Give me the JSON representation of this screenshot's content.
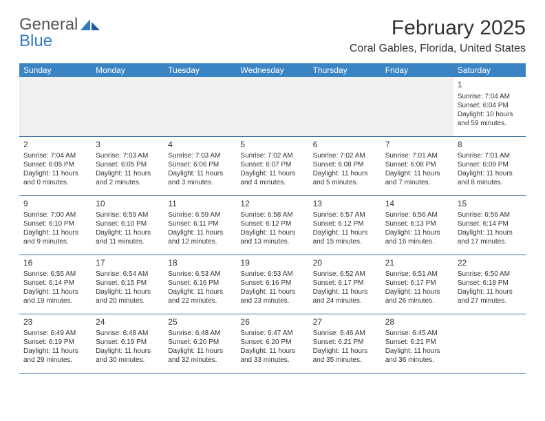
{
  "brand": {
    "line1": "General",
    "line2": "Blue",
    "logo_color": "#2f78c4"
  },
  "title": "February 2025",
  "location": "Coral Gables, Florida, United States",
  "colors": {
    "header_bg": "#3b84c4",
    "header_text": "#ffffff",
    "divider": "#3b6ea0",
    "text": "#333333",
    "empty_bg": "#f0f0f0",
    "page_bg": "#ffffff"
  },
  "daynames": [
    "Sunday",
    "Monday",
    "Tuesday",
    "Wednesday",
    "Thursday",
    "Friday",
    "Saturday"
  ],
  "weeks": [
    [
      null,
      null,
      null,
      null,
      null,
      null,
      {
        "n": "1",
        "sr": "Sunrise: 7:04 AM",
        "ss": "Sunset: 6:04 PM",
        "dl": "Daylight: 10 hours and 59 minutes."
      }
    ],
    [
      {
        "n": "2",
        "sr": "Sunrise: 7:04 AM",
        "ss": "Sunset: 6:05 PM",
        "dl": "Daylight: 11 hours and 0 minutes."
      },
      {
        "n": "3",
        "sr": "Sunrise: 7:03 AM",
        "ss": "Sunset: 6:05 PM",
        "dl": "Daylight: 11 hours and 2 minutes."
      },
      {
        "n": "4",
        "sr": "Sunrise: 7:03 AM",
        "ss": "Sunset: 6:06 PM",
        "dl": "Daylight: 11 hours and 3 minutes."
      },
      {
        "n": "5",
        "sr": "Sunrise: 7:02 AM",
        "ss": "Sunset: 6:07 PM",
        "dl": "Daylight: 11 hours and 4 minutes."
      },
      {
        "n": "6",
        "sr": "Sunrise: 7:02 AM",
        "ss": "Sunset: 6:08 PM",
        "dl": "Daylight: 11 hours and 5 minutes."
      },
      {
        "n": "7",
        "sr": "Sunrise: 7:01 AM",
        "ss": "Sunset: 6:08 PM",
        "dl": "Daylight: 11 hours and 7 minutes."
      },
      {
        "n": "8",
        "sr": "Sunrise: 7:01 AM",
        "ss": "Sunset: 6:09 PM",
        "dl": "Daylight: 11 hours and 8 minutes."
      }
    ],
    [
      {
        "n": "9",
        "sr": "Sunrise: 7:00 AM",
        "ss": "Sunset: 6:10 PM",
        "dl": "Daylight: 11 hours and 9 minutes."
      },
      {
        "n": "10",
        "sr": "Sunrise: 6:59 AM",
        "ss": "Sunset: 6:10 PM",
        "dl": "Daylight: 11 hours and 11 minutes."
      },
      {
        "n": "11",
        "sr": "Sunrise: 6:59 AM",
        "ss": "Sunset: 6:11 PM",
        "dl": "Daylight: 11 hours and 12 minutes."
      },
      {
        "n": "12",
        "sr": "Sunrise: 6:58 AM",
        "ss": "Sunset: 6:12 PM",
        "dl": "Daylight: 11 hours and 13 minutes."
      },
      {
        "n": "13",
        "sr": "Sunrise: 6:57 AM",
        "ss": "Sunset: 6:12 PM",
        "dl": "Daylight: 11 hours and 15 minutes."
      },
      {
        "n": "14",
        "sr": "Sunrise: 6:56 AM",
        "ss": "Sunset: 6:13 PM",
        "dl": "Daylight: 11 hours and 16 minutes."
      },
      {
        "n": "15",
        "sr": "Sunrise: 6:56 AM",
        "ss": "Sunset: 6:14 PM",
        "dl": "Daylight: 11 hours and 17 minutes."
      }
    ],
    [
      {
        "n": "16",
        "sr": "Sunrise: 6:55 AM",
        "ss": "Sunset: 6:14 PM",
        "dl": "Daylight: 11 hours and 19 minutes."
      },
      {
        "n": "17",
        "sr": "Sunrise: 6:54 AM",
        "ss": "Sunset: 6:15 PM",
        "dl": "Daylight: 11 hours and 20 minutes."
      },
      {
        "n": "18",
        "sr": "Sunrise: 6:53 AM",
        "ss": "Sunset: 6:16 PM",
        "dl": "Daylight: 11 hours and 22 minutes."
      },
      {
        "n": "19",
        "sr": "Sunrise: 6:53 AM",
        "ss": "Sunset: 6:16 PM",
        "dl": "Daylight: 11 hours and 23 minutes."
      },
      {
        "n": "20",
        "sr": "Sunrise: 6:52 AM",
        "ss": "Sunset: 6:17 PM",
        "dl": "Daylight: 11 hours and 24 minutes."
      },
      {
        "n": "21",
        "sr": "Sunrise: 6:51 AM",
        "ss": "Sunset: 6:17 PM",
        "dl": "Daylight: 11 hours and 26 minutes."
      },
      {
        "n": "22",
        "sr": "Sunrise: 6:50 AM",
        "ss": "Sunset: 6:18 PM",
        "dl": "Daylight: 11 hours and 27 minutes."
      }
    ],
    [
      {
        "n": "23",
        "sr": "Sunrise: 6:49 AM",
        "ss": "Sunset: 6:19 PM",
        "dl": "Daylight: 11 hours and 29 minutes."
      },
      {
        "n": "24",
        "sr": "Sunrise: 6:48 AM",
        "ss": "Sunset: 6:19 PM",
        "dl": "Daylight: 11 hours and 30 minutes."
      },
      {
        "n": "25",
        "sr": "Sunrise: 6:48 AM",
        "ss": "Sunset: 6:20 PM",
        "dl": "Daylight: 11 hours and 32 minutes."
      },
      {
        "n": "26",
        "sr": "Sunrise: 6:47 AM",
        "ss": "Sunset: 6:20 PM",
        "dl": "Daylight: 11 hours and 33 minutes."
      },
      {
        "n": "27",
        "sr": "Sunrise: 6:46 AM",
        "ss": "Sunset: 6:21 PM",
        "dl": "Daylight: 11 hours and 35 minutes."
      },
      {
        "n": "28",
        "sr": "Sunrise: 6:45 AM",
        "ss": "Sunset: 6:21 PM",
        "dl": "Daylight: 11 hours and 36 minutes."
      },
      null
    ]
  ]
}
